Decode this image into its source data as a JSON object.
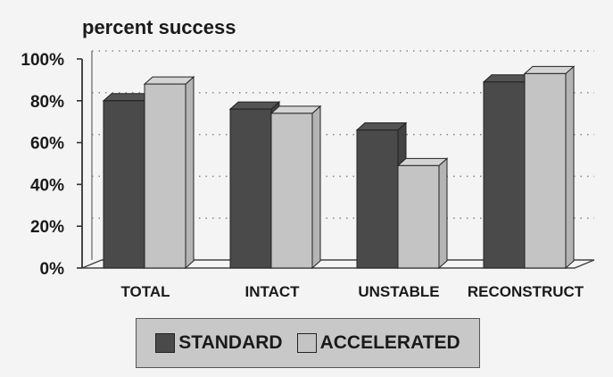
{
  "chart_data": {
    "type": "bar",
    "title": "percent success",
    "categories": [
      "TOTAL",
      "INTACT",
      "UNSTABLE",
      "RECONSTRUCT"
    ],
    "series": [
      {
        "name": "STANDARD",
        "values": [
          80,
          76,
          66,
          89
        ],
        "color": "#4a4a4a"
      },
      {
        "name": "ACCELERATED",
        "values": [
          88,
          74,
          49,
          93
        ],
        "color": "#c4c4c4"
      }
    ],
    "ylim": [
      0,
      100
    ],
    "yticks": [
      "0%",
      "20%",
      "40%",
      "60%",
      "80%",
      "100%"
    ],
    "ytick_values": [
      0,
      20,
      40,
      60,
      80,
      100
    ],
    "grid": true,
    "legend": "bottom"
  }
}
